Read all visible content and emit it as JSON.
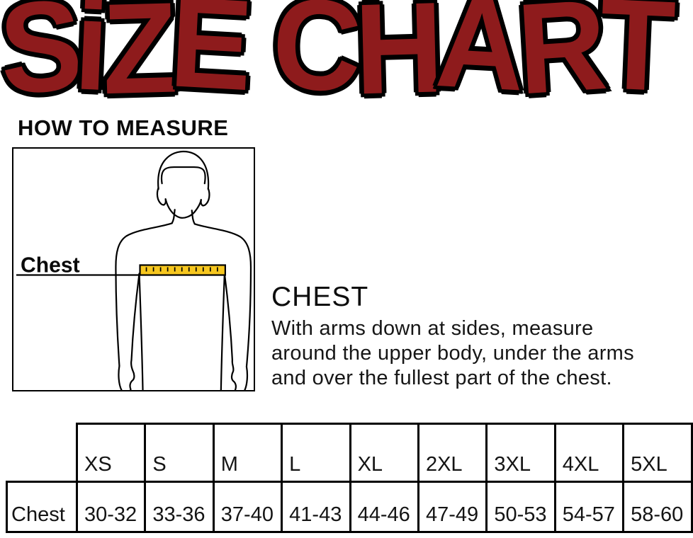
{
  "title": "SiZE CHART",
  "colors": {
    "title_fill": "#8e1b1c",
    "title_outline": "#000000",
    "tape_yellow": "#f7c71f",
    "line_black": "#000000"
  },
  "how_to_measure_heading": "HOW TO MEASURE",
  "diagram": {
    "chest_label": "Chest"
  },
  "chest_section": {
    "heading": "CHEST",
    "line1": "With arms down at sides, measure",
    "line2": "around the upper body, under the arms",
    "line3": "and over the fullest part of the chest."
  },
  "size_table": {
    "row_label": "Chest",
    "sizes": [
      "XS",
      "S",
      "M",
      "L",
      "XL",
      "2XL",
      "3XL",
      "4XL",
      "5XL"
    ],
    "chest_ranges": [
      "30-32",
      "33-36",
      "37-40",
      "41-43",
      "44-46",
      "47-49",
      "50-53",
      "54-57",
      "58-60"
    ]
  },
  "chart_data": {
    "type": "table",
    "title": "SIZE CHART",
    "section_heading": "HOW TO MEASURE",
    "measure_name": "CHEST",
    "measure_instructions": "With arms down at sides, measure around the upper body, under the arms and over the fullest part of the chest.",
    "columns": [
      "XS",
      "S",
      "M",
      "L",
      "XL",
      "2XL",
      "3XL",
      "4XL",
      "5XL"
    ],
    "rows": [
      {
        "label": "Chest",
        "values": [
          "30-32",
          "33-36",
          "37-40",
          "41-43",
          "44-46",
          "47-49",
          "50-53",
          "54-57",
          "58-60"
        ]
      }
    ]
  }
}
